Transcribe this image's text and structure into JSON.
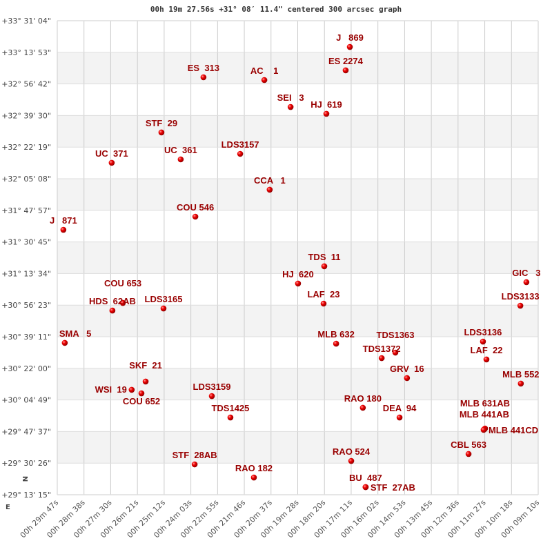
{
  "chart_data": {
    "type": "scatter",
    "title": "00h 19m 27.56s +31° 08′ 11.4\" centered 300 arcsec graph",
    "xlabel": "",
    "ylabel": "",
    "x_axis": "right ascension (decreasing to the right)",
    "xlim_ra_min": [
      29.783,
      9.17
    ],
    "ylim_dec_deg": [
      29.2208,
      33.5178
    ],
    "grid": true,
    "compass": {
      "north": "N",
      "east": "E"
    },
    "x_ticks": [
      "00h 29m 47s",
      "00h 28m 38s",
      "00h 27m 30s",
      "00h 26m 21s",
      "00h 25m 12s",
      "00h 24m 03s",
      "00h 22m 55s",
      "00h 21m 46s",
      "00h 20m 37s",
      "00h 19m 28s",
      "00h 18m 20s",
      "00h 17m 11s",
      "00h 16m 02s",
      "00h 14m 53s",
      "00h 13m 45s",
      "00h 12m 36s",
      "00h 11m 27s",
      "00h 10m 18s",
      "00h 09m 10s"
    ],
    "y_ticks": [
      "+33° 31' 04\"",
      "+33° 13' 53\"",
      "+32° 56' 42\"",
      "+32° 39' 30\"",
      "+32° 22' 19\"",
      "+32° 05' 08\"",
      "+31° 47' 57\"",
      "+31° 30' 45\"",
      "+31° 13' 34\"",
      "+30° 56' 23\"",
      "+30° 39' 11\"",
      "+30° 22' 00\"",
      "+30° 04' 49\"",
      "+29° 47' 37\"",
      "+29° 30' 26\"",
      "+29° 13' 15\""
    ],
    "point_color": "#dd0000",
    "label_color": "#990000",
    "points": [
      {
        "name": "J   869",
        "ra_min": 17.19,
        "dec_deg": 33.28
      },
      {
        "name": "ES 2274",
        "ra_min": 17.37,
        "dec_deg": 33.068
      },
      {
        "name": "ES  313",
        "ra_min": 23.49,
        "dec_deg": 33.005
      },
      {
        "name": "AC    1",
        "ra_min": 20.87,
        "dec_deg": 32.98
      },
      {
        "name": "SEI   3",
        "ra_min": 19.74,
        "dec_deg": 32.736
      },
      {
        "name": "HJ  619",
        "ra_min": 18.2,
        "dec_deg": 32.674
      },
      {
        "name": "STF  29",
        "ra_min": 25.3,
        "dec_deg": 32.505
      },
      {
        "name": "UC  361",
        "ra_min": 24.47,
        "dec_deg": 32.261
      },
      {
        "name": "LDS3157",
        "ra_min": 21.91,
        "dec_deg": 32.311
      },
      {
        "name": "UC  371",
        "ra_min": 27.44,
        "dec_deg": 32.23
      },
      {
        "name": "CCA   1",
        "ra_min": 20.64,
        "dec_deg": 31.986
      },
      {
        "name": "COU 546",
        "ra_min": 23.84,
        "dec_deg": 31.742
      },
      {
        "name": "J   871",
        "ra_min": 29.52,
        "dec_deg": 31.623
      },
      {
        "name": "TDS  11",
        "ra_min": 18.29,
        "dec_deg": 31.292
      },
      {
        "name": "HJ  620",
        "ra_min": 19.42,
        "dec_deg": 31.136
      },
      {
        "name": "GIC   3",
        "ra_min": 9.59,
        "dec_deg": 31.148
      },
      {
        "name": "LDS3133",
        "ra_min": 9.85,
        "dec_deg": 30.935
      },
      {
        "name": "LAF  23",
        "ra_min": 18.32,
        "dec_deg": 30.954
      },
      {
        "name": "COU 653",
        "ra_min": 26.96,
        "dec_deg": 30.96
      },
      {
        "name": "HDS  62AB",
        "ra_min": 27.41,
        "dec_deg": 30.891
      },
      {
        "name": "LDS3165",
        "ra_min": 25.21,
        "dec_deg": 30.91
      },
      {
        "name": "SMA   5",
        "ra_min": 29.46,
        "dec_deg": 30.598
      },
      {
        "name": "MLB 632",
        "ra_min": 17.78,
        "dec_deg": 30.591
      },
      {
        "name": "LDS3136",
        "ra_min": 11.46,
        "dec_deg": 30.61
      },
      {
        "name": "TDS1363",
        "ra_min": 15.23,
        "dec_deg": 30.51
      },
      {
        "name": "TDS1372",
        "ra_min": 15.82,
        "dec_deg": 30.46
      },
      {
        "name": "LAF  22",
        "ra_min": 11.31,
        "dec_deg": 30.448
      },
      {
        "name": "GRV  16",
        "ra_min": 14.73,
        "dec_deg": 30.279
      },
      {
        "name": "MLB 552",
        "ra_min": 9.83,
        "dec_deg": 30.229
      },
      {
        "name": "SKF  21",
        "ra_min": 25.98,
        "dec_deg": 30.248
      },
      {
        "name": "WSI  19",
        "ra_min": 26.58,
        "dec_deg": 30.173
      },
      {
        "name": "COU 652",
        "ra_min": 26.16,
        "dec_deg": 30.141
      },
      {
        "name": "LDS3159",
        "ra_min": 23.13,
        "dec_deg": 30.116
      },
      {
        "name": "RAO 180",
        "ra_min": 16.63,
        "dec_deg": 30.01
      },
      {
        "name": "DEA  94",
        "ra_min": 15.05,
        "dec_deg": 29.922
      },
      {
        "name": "TDS1425",
        "ra_min": 22.33,
        "dec_deg": 29.922
      },
      {
        "name": "MLB 631AB",
        "ra_min": 11.37,
        "dec_deg": 29.822
      },
      {
        "name": "MLB 441AB",
        "ra_min": 11.4,
        "dec_deg": 29.816
      },
      {
        "name": "MLB 441CD",
        "ra_min": 11.43,
        "dec_deg": 29.81
      },
      {
        "name": "CBL 563",
        "ra_min": 12.08,
        "dec_deg": 29.591
      },
      {
        "name": "STF  28AB",
        "ra_min": 23.87,
        "dec_deg": 29.497
      },
      {
        "name": "RAO 524",
        "ra_min": 17.13,
        "dec_deg": 29.528
      },
      {
        "name": "RAO 182",
        "ra_min": 21.32,
        "dec_deg": 29.378
      },
      {
        "name": "BU  487",
        "ra_min": 16.51,
        "dec_deg": 29.291
      },
      {
        "name": "STF  27AB",
        "ra_min": 16.51,
        "dec_deg": 29.291
      }
    ]
  }
}
